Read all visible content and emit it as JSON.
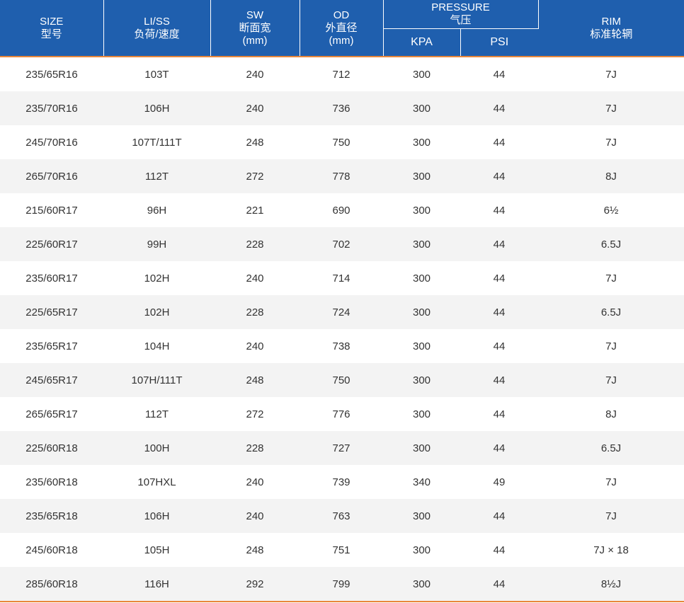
{
  "header": {
    "size": {
      "en": "SIZE",
      "zh": "型号"
    },
    "li_ss": {
      "en": "LI/SS",
      "zh": "负荷/速度"
    },
    "sw": {
      "en": "SW",
      "zh": "断面宽",
      "unit": "(mm)"
    },
    "od": {
      "en": "OD",
      "zh": "外直径",
      "unit": "(mm)"
    },
    "pressure": {
      "en": "PRESSURE",
      "zh": "气压",
      "kpa": "KPA",
      "psi": "PSI"
    },
    "rim": {
      "en": "RIM",
      "zh": "标准轮辋"
    }
  },
  "colors": {
    "header_bg": "#1f5fae",
    "accent_line": "#e8873a",
    "row_alt": "#f3f3f3"
  },
  "rows": [
    [
      "235/65R16",
      "103T",
      "240",
      "712",
      "300",
      "44",
      "7J"
    ],
    [
      "235/70R16",
      "106H",
      "240",
      "736",
      "300",
      "44",
      "7J"
    ],
    [
      "245/70R16",
      "107T/111T",
      "248",
      "750",
      "300",
      "44",
      "7J"
    ],
    [
      "265/70R16",
      "112T",
      "272",
      "778",
      "300",
      "44",
      "8J"
    ],
    [
      "215/60R17",
      "96H",
      "221",
      "690",
      "300",
      "44",
      "6½"
    ],
    [
      "225/60R17",
      "99H",
      "228",
      "702",
      "300",
      "44",
      "6.5J"
    ],
    [
      "235/60R17",
      "102H",
      "240",
      "714",
      "300",
      "44",
      "7J"
    ],
    [
      "225/65R17",
      "102H",
      "228",
      "724",
      "300",
      "44",
      "6.5J"
    ],
    [
      "235/65R17",
      "104H",
      "240",
      "738",
      "300",
      "44",
      "7J"
    ],
    [
      "245/65R17",
      "107H/111T",
      "248",
      "750",
      "300",
      "44",
      "7J"
    ],
    [
      "265/65R17",
      "112T",
      "272",
      "776",
      "300",
      "44",
      "8J"
    ],
    [
      "225/60R18",
      "100H",
      "228",
      "727",
      "300",
      "44",
      "6.5J"
    ],
    [
      "235/60R18",
      "107HXL",
      "240",
      "739",
      "340",
      "49",
      "7J"
    ],
    [
      "235/65R18",
      "106H",
      "240",
      "763",
      "300",
      "44",
      "7J"
    ],
    [
      "245/60R18",
      "105H",
      "248",
      "751",
      "300",
      "44",
      "7J × 18"
    ],
    [
      "285/60R18",
      "116H",
      "292",
      "799",
      "300",
      "44",
      "8½J"
    ]
  ]
}
